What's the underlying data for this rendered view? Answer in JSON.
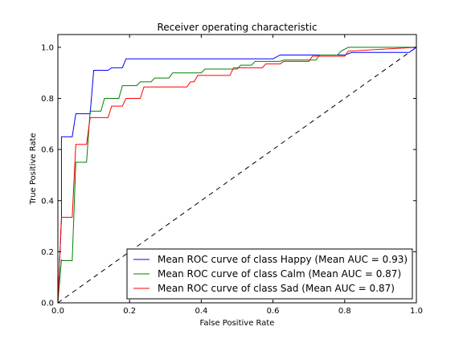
{
  "chart_data": {
    "type": "line",
    "title": "Receiver operating characteristic",
    "xlabel": "False Positive Rate",
    "ylabel": "True Positive Rate",
    "xlim": [
      0,
      1
    ],
    "ylim": [
      0,
      1.05
    ],
    "xticks": [
      0,
      0.2,
      0.4,
      0.6,
      0.8,
      1
    ],
    "xtick_labels": [
      "0.0",
      "0.2",
      "0.4",
      "0.6",
      "0.8",
      "1.0"
    ],
    "yticks": [
      0,
      0.2,
      0.4,
      0.6,
      0.8,
      1
    ],
    "ytick_labels": [
      "0.0",
      "0.2",
      "0.4",
      "0.6",
      "0.8",
      "1.0"
    ],
    "grid": false,
    "legend_position": "lower-right",
    "chance_line": {
      "x": [
        0,
        1
      ],
      "y": [
        0,
        1
      ],
      "color": "#000000",
      "dash": "dashed"
    },
    "series": [
      {
        "name": "Mean ROC curve of class Happy (Mean AUC = 0.93)",
        "color": "#0000ff",
        "x": [
          0,
          0.01,
          0.01,
          0.04,
          0.05,
          0.09,
          0.1,
          0.14,
          0.15,
          0.18,
          0.19,
          0.6,
          0.62,
          0.8,
          0.82,
          0.98,
          1
        ],
        "y": [
          0,
          0.33,
          0.65,
          0.65,
          0.74,
          0.74,
          0.91,
          0.91,
          0.92,
          0.92,
          0.955,
          0.955,
          0.97,
          0.97,
          0.98,
          0.98,
          1
        ]
      },
      {
        "name": "Mean ROC curve of class Calm (Mean AUC = 0.87)",
        "color": "#008000",
        "x": [
          0,
          0.01,
          0.01,
          0.04,
          0.05,
          0.08,
          0.09,
          0.12,
          0.13,
          0.17,
          0.18,
          0.22,
          0.23,
          0.26,
          0.27,
          0.31,
          0.32,
          0.4,
          0.41,
          0.5,
          0.51,
          0.54,
          0.55,
          0.62,
          0.63,
          0.72,
          0.73,
          0.78,
          0.79,
          0.81,
          1
        ],
        "y": [
          0,
          0.17,
          0.165,
          0.165,
          0.55,
          0.55,
          0.75,
          0.75,
          0.8,
          0.8,
          0.85,
          0.85,
          0.865,
          0.865,
          0.88,
          0.88,
          0.9,
          0.9,
          0.915,
          0.915,
          0.93,
          0.93,
          0.945,
          0.945,
          0.95,
          0.95,
          0.97,
          0.97,
          0.985,
          1,
          1
        ]
      },
      {
        "name": "Mean ROC curve of class Sad (Mean AUC = 0.87)",
        "color": "#ff0000",
        "x": [
          0,
          0.01,
          0.01,
          0.04,
          0.05,
          0.08,
          0.09,
          0.14,
          0.15,
          0.18,
          0.19,
          0.23,
          0.24,
          0.36,
          0.37,
          0.38,
          0.39,
          0.48,
          0.49,
          0.57,
          0.58,
          0.62,
          0.63,
          0.7,
          0.71,
          0.8,
          0.81,
          1
        ],
        "y": [
          0,
          0.335,
          0.335,
          0.335,
          0.62,
          0.62,
          0.725,
          0.725,
          0.77,
          0.77,
          0.8,
          0.8,
          0.845,
          0.845,
          0.865,
          0.865,
          0.89,
          0.89,
          0.92,
          0.92,
          0.935,
          0.935,
          0.945,
          0.945,
          0.965,
          0.965,
          0.985,
          1
        ]
      }
    ]
  }
}
